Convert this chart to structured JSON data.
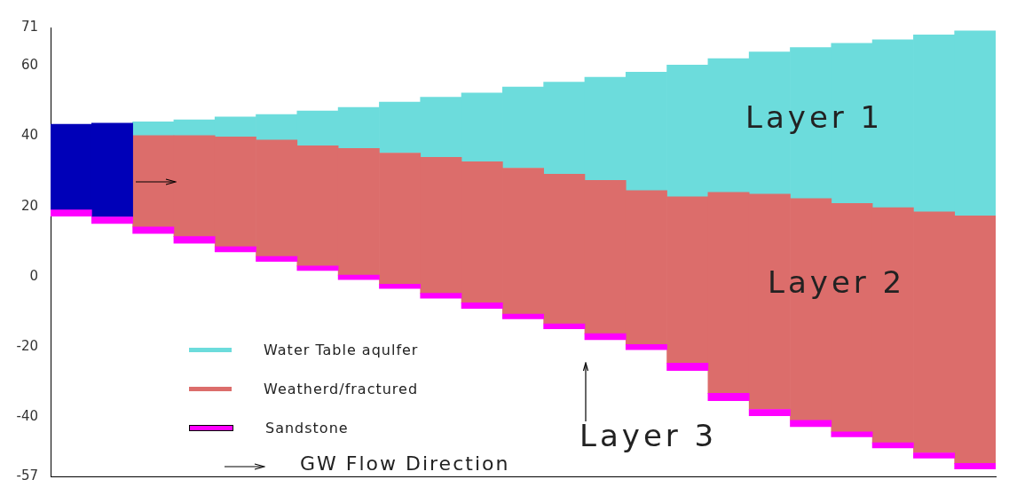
{
  "chart_data": {
    "type": "bar",
    "categories": [
      null,
      null,
      null,
      null,
      null,
      null,
      null,
      null,
      null,
      null,
      null,
      null,
      null,
      null,
      null,
      null,
      null,
      null,
      null,
      null,
      null,
      null,
      null
    ],
    "series": [
      {
        "name": "Sandstone",
        "color": "#ff00ff",
        "base": [
          17.2,
          15.1,
          12.3,
          9.5,
          7.0,
          4.3,
          1.7,
          -0.9,
          -3.4,
          -6.2,
          -9.1,
          -12.1,
          -14.9,
          -18.0,
          -20.9,
          -26.8,
          -35.4,
          -39.7,
          -42.8,
          -45.7,
          -48.9,
          -51.8,
          -54.9
        ],
        "values": [
          1.8,
          1.9,
          1.8,
          1.9,
          1.5,
          1.4,
          1.3,
          1.3,
          1.2,
          1.4,
          1.6,
          1.4,
          1.4,
          1.7,
          1.5,
          2.1,
          2.1,
          1.8,
          1.8,
          1.4,
          1.5,
          1.5,
          1.6
        ]
      },
      {
        "color": "#0000b8",
        "base": [
          19.0,
          17.0,
          null,
          null,
          null,
          null,
          null,
          null,
          null,
          null,
          null,
          null,
          null,
          null,
          null,
          null,
          null,
          null,
          null,
          null,
          null,
          null,
          null
        ],
        "values": [
          24.4,
          26.7,
          null,
          null,
          null,
          null,
          null,
          null,
          null,
          null,
          null,
          null,
          null,
          null,
          null,
          null,
          null,
          null,
          null,
          null,
          null,
          null,
          null
        ]
      },
      {
        "name": "Weatherd/fractured",
        "color": "#dc6d6b",
        "base": [
          null,
          null,
          14.1,
          11.4,
          8.5,
          5.7,
          3.0,
          0.4,
          -2.2,
          -4.8,
          -7.5,
          -10.7,
          -13.5,
          -16.3,
          -19.4,
          -24.7,
          -33.3,
          -37.9,
          -41.0,
          -44.3,
          -47.4,
          -50.3,
          -53.3
        ],
        "values": [
          null,
          null,
          26.1,
          28.8,
          31.3,
          33.2,
          34.3,
          36.1,
          37.4,
          38.8,
          40.2,
          41.6,
          42.7,
          43.7,
          43.9,
          47.4,
          57.3,
          61.4,
          63.2,
          65.1,
          67.0,
          68.7,
          70.6
        ]
      },
      {
        "name": "Water Table aqulfer",
        "color": "#6cdcdc",
        "base": [
          null,
          null,
          40.2,
          40.2,
          39.8,
          38.9,
          37.3,
          36.5,
          35.2,
          34.0,
          32.7,
          30.9,
          29.2,
          27.4,
          24.5,
          22.7,
          24.0,
          23.5,
          22.2,
          20.8,
          19.6,
          18.4,
          17.3
        ],
        "values": [
          null,
          null,
          3.9,
          4.5,
          5.7,
          7.3,
          9.9,
          11.7,
          14.5,
          17.1,
          19.6,
          23.1,
          26.2,
          29.4,
          33.8,
          37.6,
          38.1,
          40.5,
          43.1,
          45.7,
          47.9,
          50.5,
          52.7
        ]
      }
    ],
    "ylim": [
      -57,
      71
    ],
    "yticks": [
      -57,
      -40,
      -20,
      0,
      20,
      40,
      60,
      71
    ],
    "tick_labels": "y",
    "grid": false,
    "legend": "bottom left",
    "annotations": [
      "Layer 1",
      "Layer 2",
      "Layer 3",
      "GW Flow Direction"
    ]
  }
}
